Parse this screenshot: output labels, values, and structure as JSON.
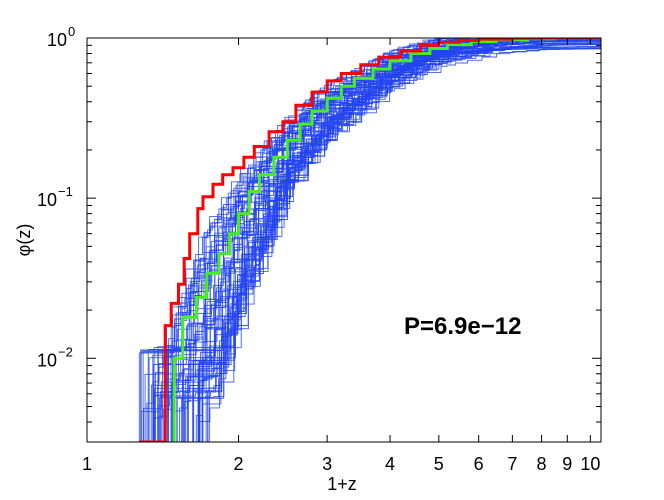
{
  "chart_data": {
    "type": "line",
    "xscale": "log",
    "yscale": "log",
    "xlim": [
      1,
      10.5
    ],
    "ylim": [
      0.003,
      1
    ],
    "xlabel": "1+z",
    "ylabel": "φ(z)",
    "x_ticks": [
      "1",
      "2",
      "3",
      "4",
      "5",
      "6",
      "7",
      "8",
      "9",
      "10"
    ],
    "y_ticks": [
      {
        "value": 1,
        "base": "10",
        "exp": "0"
      },
      {
        "value": 0.1,
        "base": "10",
        "exp": "−1"
      },
      {
        "value": 0.01,
        "base": "10",
        "exp": "−2"
      }
    ],
    "annotation": "P=6.9e−12",
    "grid": false,
    "colors": {
      "observed": "#ff0000",
      "median": "#44ee22",
      "realizations": "#2244ee"
    },
    "series": [
      {
        "color": "#ff0000",
        "step": true,
        "x": [
          1.27,
          1.41,
          1.43,
          1.47,
          1.52,
          1.56,
          1.6,
          1.66,
          1.7,
          1.78,
          1.86,
          1.95,
          2.05,
          2.15,
          2.3,
          2.45,
          2.6,
          2.8,
          3.0,
          3.2,
          3.5,
          3.8,
          4.2,
          4.6,
          5.0,
          5.5,
          6.0,
          7.0,
          8.0,
          10.5
        ],
        "y": [
          0.003,
          0.003,
          0.016,
          0.022,
          0.029,
          0.042,
          0.06,
          0.086,
          0.102,
          0.122,
          0.14,
          0.155,
          0.18,
          0.21,
          0.26,
          0.3,
          0.38,
          0.46,
          0.54,
          0.6,
          0.68,
          0.76,
          0.83,
          0.9,
          0.94,
          0.965,
          0.985,
          0.995,
          1.0,
          1.0
        ]
      },
      {
        "color": "#44ee22",
        "step": true,
        "x": [
          1.49,
          1.49,
          1.55,
          1.65,
          1.73,
          1.83,
          1.92,
          2.0,
          2.1,
          2.2,
          2.35,
          2.5,
          2.65,
          2.8,
          3.0,
          3.2,
          3.4,
          3.7,
          4.0,
          4.4,
          4.8,
          5.2,
          5.8,
          6.5,
          7.5,
          8.5,
          10.5
        ],
        "y": [
          0.003,
          0.01,
          0.018,
          0.024,
          0.034,
          0.045,
          0.06,
          0.08,
          0.11,
          0.14,
          0.18,
          0.23,
          0.29,
          0.35,
          0.42,
          0.5,
          0.56,
          0.64,
          0.72,
          0.8,
          0.86,
          0.91,
          0.95,
          0.975,
          0.99,
          0.998,
          1.0
        ]
      }
    ],
    "simulated_band": {
      "color": "#2244ee",
      "count": 70,
      "onset_x_range": [
        1.27,
        1.75
      ],
      "lower_bound": {
        "x": [
          1.75,
          2.0,
          2.5,
          3.0,
          4.0,
          5.0,
          6.5,
          8.0,
          10.5
        ],
        "y": [
          0.004,
          0.02,
          0.12,
          0.25,
          0.52,
          0.75,
          0.92,
          0.985,
          1.0
        ]
      },
      "upper_bound": {
        "x": [
          1.27,
          1.5,
          1.7,
          2.0,
          2.5,
          3.0,
          4.0,
          5.0,
          7.0,
          10.5
        ],
        "y": [
          0.004,
          0.025,
          0.07,
          0.15,
          0.32,
          0.5,
          0.78,
          0.93,
          0.99,
          1.0
        ]
      }
    }
  }
}
